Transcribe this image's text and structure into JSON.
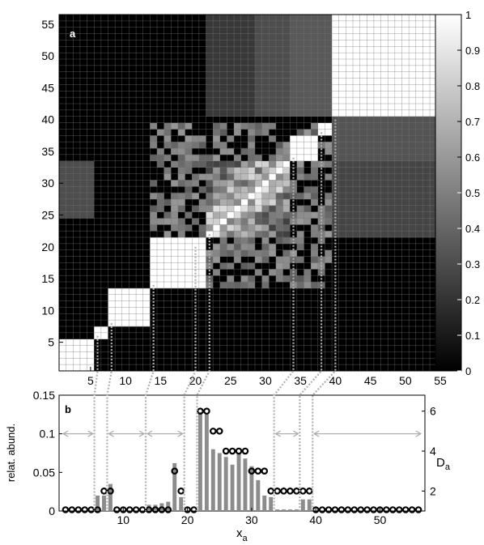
{
  "chart_data": [
    {
      "type": "heatmap",
      "panel_label": "a",
      "x_range": [
        1,
        56
      ],
      "y_range": [
        1,
        56
      ],
      "x_ticks": [
        5,
        10,
        15,
        20,
        25,
        30,
        35,
        40,
        45,
        50,
        55
      ],
      "y_ticks": [
        5,
        10,
        15,
        20,
        25,
        30,
        35,
        40,
        45,
        50,
        55
      ],
      "colorbar": {
        "min": 0,
        "max": 1,
        "ticks": [
          0,
          0.1,
          0.2,
          0.3,
          0.4,
          0.5,
          0.6,
          0.7,
          0.8,
          0.9,
          1
        ],
        "colormap": "grayscale"
      },
      "block_boundaries": [
        5.5,
        7.5,
        13.5,
        19.5,
        21.5,
        33.5,
        37.5,
        39.5
      ],
      "diagonal_blocks": [
        {
          "from": 1,
          "to": 5,
          "value": 1
        },
        {
          "from": 6,
          "to": 7,
          "value": 1
        },
        {
          "from": 8,
          "to": 13,
          "value": 1
        },
        {
          "from": 14,
          "to": 21,
          "value": 1
        },
        {
          "from": 22,
          "to": 33,
          "value": 0.95
        },
        {
          "from": 34,
          "to": 37,
          "value": 1
        },
        {
          "from": 38,
          "to": 39,
          "value": 1
        },
        {
          "from": 40,
          "to": 56,
          "value": 1
        }
      ],
      "large_blocks": [
        {
          "x": [
            40,
            56
          ],
          "y": [
            41,
            56
          ],
          "value": 1
        },
        {
          "x": [
            22,
            28
          ],
          "y": [
            41,
            56
          ],
          "value": 0.22
        },
        {
          "x": [
            29,
            33
          ],
          "y": [
            41,
            56
          ],
          "value": 0.3
        },
        {
          "x": [
            34,
            39
          ],
          "y": [
            41,
            56
          ],
          "value": 0.35
        },
        {
          "x": [
            40,
            56
          ],
          "y": [
            34,
            40
          ],
          "value": 0.33
        },
        {
          "x": [
            40,
            56
          ],
          "y": [
            22,
            33
          ],
          "value": 0.27
        },
        {
          "x": [
            40,
            56
          ],
          "y": [
            1,
            21
          ],
          "value": 0
        }
      ]
    },
    {
      "type": "bar",
      "panel_label": "b",
      "xlabel": "x",
      "xlabel_sub": "a",
      "ylabel": "relat. abund.",
      "y2label": "D",
      "y2label_sub": "a",
      "x": [
        1,
        2,
        3,
        4,
        5,
        6,
        7,
        8,
        9,
        10,
        11,
        12,
        13,
        14,
        15,
        16,
        17,
        18,
        19,
        20,
        21,
        22,
        23,
        24,
        25,
        26,
        27,
        28,
        29,
        30,
        31,
        32,
        33,
        34,
        35,
        36,
        37,
        38,
        39,
        40,
        41,
        42,
        43,
        44,
        45,
        46,
        47,
        48,
        49,
        50,
        51,
        52,
        53,
        54,
        55,
        56
      ],
      "xlim": [
        0,
        57
      ],
      "x_ticks": [
        10,
        20,
        30,
        40,
        50
      ],
      "ylim": [
        0,
        0.15
      ],
      "y_ticks": [
        0,
        0.05,
        0.1,
        0.15
      ],
      "y2lim": [
        1,
        6.8
      ],
      "y2_ticks": [
        2,
        4,
        6
      ],
      "series": [
        {
          "values": [
            0.001,
            0.001,
            0.001,
            0.001,
            0.001,
            0.02,
            0.02,
            0.035,
            0.001,
            0.001,
            0.001,
            0.001,
            0.001,
            0.008,
            0.008,
            0.01,
            0.012,
            0.062,
            0.018,
            0.001,
            0.001,
            0.128,
            0.125,
            0.08,
            0.075,
            0.07,
            0.06,
            0.075,
            0.068,
            0.058,
            0.04,
            0.02,
            0.018,
            0.002,
            0.002,
            0.002,
            0.002,
            0.015,
            0.015,
            0.001,
            0.001,
            0.001,
            0.001,
            0.001,
            0.001,
            0.001,
            0.001,
            0.001,
            0.001,
            0.001,
            0.001,
            0.001,
            0.001,
            0.001,
            0.001,
            0.001
          ]
        },
        {
          "values": [
            1,
            1,
            1,
            1,
            1,
            1,
            2,
            2,
            1,
            1,
            1,
            1,
            1,
            1,
            1,
            1,
            1,
            3,
            2,
            1,
            1,
            6,
            6,
            5,
            5,
            4,
            4,
            4,
            4,
            3,
            3,
            3,
            2,
            2,
            2,
            2,
            2,
            2,
            2,
            1,
            1,
            1,
            1,
            1,
            1,
            1,
            1,
            1,
            1,
            1,
            1,
            1,
            1,
            1,
            1,
            1
          ]
        }
      ],
      "annotations": "double-headed arrows at y = 0.1 between adjacent cluster boundaries"
    }
  ]
}
